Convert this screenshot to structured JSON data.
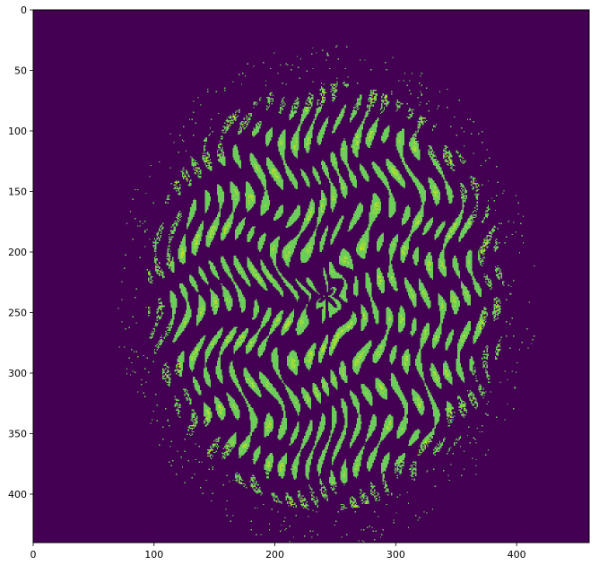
{
  "chart_data": {
    "type": "heatmap",
    "title": "",
    "xlabel": "",
    "ylabel": "",
    "xlim": [
      0,
      460
    ],
    "ylim": [
      440,
      0
    ],
    "x_ticks": [
      0,
      100,
      200,
      300,
      400
    ],
    "y_ticks": [
      0,
      50,
      100,
      150,
      200,
      250,
      300,
      350,
      400
    ],
    "x_tick_labels": [
      "0",
      "100",
      "200",
      "300",
      "400"
    ],
    "y_tick_labels": [
      "0",
      "50",
      "100",
      "150",
      "200",
      "250",
      "300",
      "350",
      "400"
    ],
    "grid": false,
    "colormap": "viridis",
    "colors": {
      "background": "#440154",
      "stripe": "#6ccd5a",
      "highlight": "#b5de2b"
    },
    "pattern": {
      "description_center": [
        242,
        236
      ],
      "disk_radius": [
        148,
        177
      ],
      "content": "binary fringe / contour pattern inside a roughly circular disk on a constant dark background"
    }
  }
}
